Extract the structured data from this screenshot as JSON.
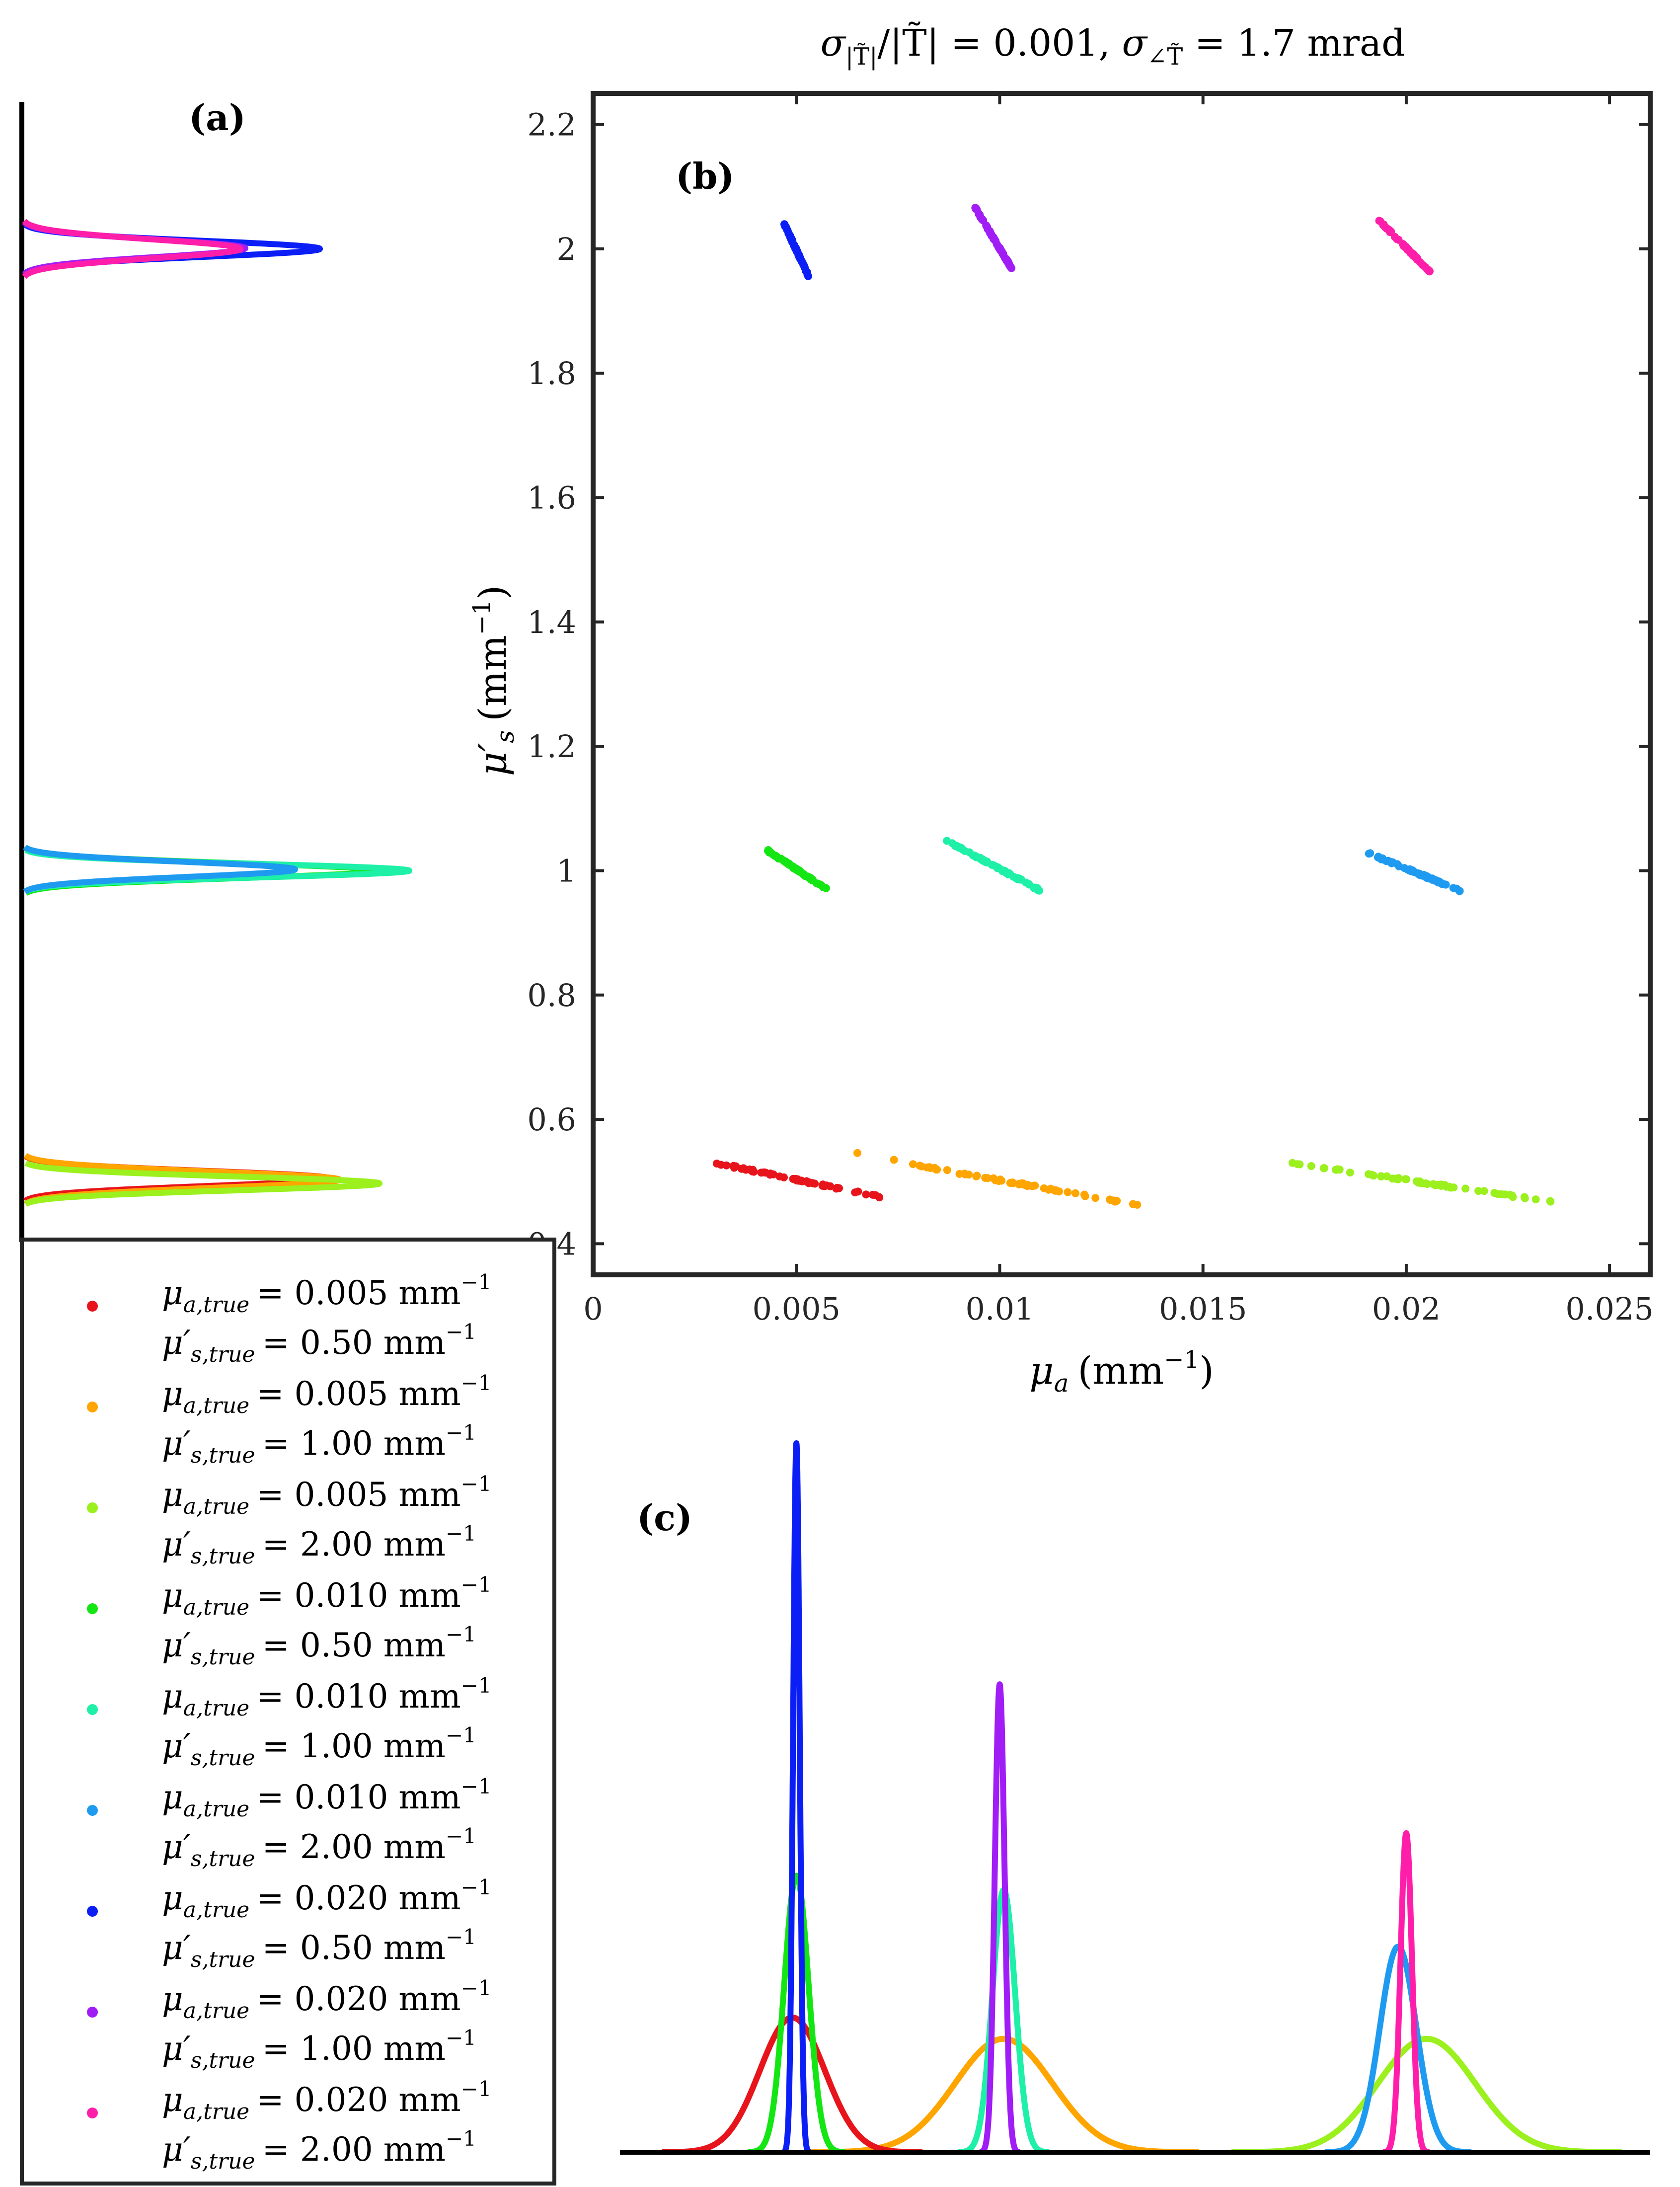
{
  "figure": {
    "title_main": "σ|T̃|/|T̃| = 0.001,  σ∠T̃ = 1.7 mrad",
    "title_parts": {
      "amp_sigma_sub": "|T̃|",
      "amp_ratio": "/|T̃| = 0.001,",
      "phase_sigma_sub": "∠T̃",
      "phase_value": "= 1.7 mrad"
    }
  },
  "colors": {
    "c1": "#e8141b",
    "c2": "#ffa500",
    "c3": "#9bf01e",
    "c4": "#14e614",
    "c5": "#1ef0a8",
    "c6": "#1e9bf0",
    "c7": "#0a1ef5",
    "c8": "#a01ef5",
    "c9": "#ff1eaa",
    "axis": "#262626"
  },
  "chart_data": [
    {
      "panel": "(b)",
      "type": "scatter",
      "title": "σ|T̃|/|T̃| = 0.001, σ∠T̃ = 1.7 mrad",
      "xlabel": "μa (mm⁻¹)",
      "xlabel_symbol": "μ",
      "xlabel_sub": "a",
      "xlabel_unit": "(mm",
      "xlabel_exp": "−1",
      "xlabel_close": ")",
      "ylabel": "μ′s (mm⁻¹)",
      "ylabel_symbol": "μ′",
      "ylabel_sub": "s",
      "ylabel_unit": "(mm",
      "ylabel_exp": "−1",
      "ylabel_close": ")",
      "xlim": [
        0,
        0.026
      ],
      "ylim": [
        0.35,
        2.25
      ],
      "xticks": [
        0,
        0.005,
        0.01,
        0.015,
        0.02,
        0.025
      ],
      "xtick_labels": [
        "0",
        "0.005",
        "0.01",
        "0.015",
        "0.02",
        "0.025"
      ],
      "yticks": [
        0.4,
        0.6,
        0.8,
        1.0,
        1.2,
        1.4,
        1.6,
        1.8,
        2.0,
        2.2
      ],
      "ytick_labels": [
        "0.4",
        "0.6",
        "0.8",
        "1",
        "1.2",
        "1.4",
        "1.6",
        "1.8",
        "2",
        "2.2"
      ],
      "series": [
        {
          "name": "μa,true = 0.005 mm⁻¹, μ′s,true = 0.50 mm⁻¹",
          "color": "#e8141b",
          "x_range": [
            0.003,
            0.0073
          ],
          "y_range": [
            0.53,
            0.472
          ]
        },
        {
          "name": "μa,true = 0.005 mm⁻¹, μ′s,true = 1.00 mm⁻¹",
          "color": "#ffa500",
          "x_range": [
            0.0078,
            0.0136
          ],
          "y_range": [
            0.528,
            0.46
          ]
        },
        {
          "name": "μa,true = 0.005 mm⁻¹, μ′s,true = 2.00 mm⁻¹",
          "color": "#9bf01e",
          "x_range": [
            0.0172,
            0.0239
          ],
          "y_range": [
            0.53,
            0.464
          ]
        },
        {
          "name": "μa,true = 0.010 mm⁻¹, μ′s,true = 0.50 mm⁻¹",
          "color": "#14e614",
          "x_range": [
            0.0043,
            0.0058
          ],
          "y_range": [
            1.032,
            0.968
          ]
        },
        {
          "name": "μa,true = 0.010 mm⁻¹, μ′s,true = 1.00 mm⁻¹",
          "color": "#1ef0a8",
          "x_range": [
            0.0087,
            0.011
          ],
          "y_range": [
            1.048,
            0.968
          ]
        },
        {
          "name": "μa,true = 0.010 mm⁻¹, μ′s,true = 2.00 mm⁻¹",
          "color": "#1e9bf0",
          "x_range": [
            0.019,
            0.0214
          ],
          "y_range": [
            1.03,
            0.966
          ]
        },
        {
          "name": "μa,true = 0.020 mm⁻¹, μ′s,true = 0.50 mm⁻¹",
          "color": "#0a1ef5",
          "x_range": [
            0.0047,
            0.0053
          ],
          "y_range": [
            2.04,
            1.956
          ]
        },
        {
          "name": "μa,true = 0.020 mm⁻¹, μ′s,true = 1.00 mm⁻¹",
          "color": "#a01ef5",
          "x_range": [
            0.0094,
            0.0103
          ],
          "y_range": [
            2.066,
            1.968
          ]
        },
        {
          "name": "μa,true = 0.020 mm⁻¹, μ′s,true = 2.00 mm⁻¹",
          "color": "#ff1eaa",
          "x_range": [
            0.0193,
            0.0206
          ],
          "y_range": [
            2.048,
            1.962
          ]
        }
      ],
      "outliers": [
        {
          "color": "#ffa500",
          "x": 0.0065,
          "y": 0.546
        },
        {
          "color": "#ffa500",
          "x": 0.0074,
          "y": 0.535
        },
        {
          "color": "#1ef0a8",
          "x": 0.0087,
          "y": 1.048
        },
        {
          "color": "#a01ef5",
          "x": 0.0094,
          "y": 2.066
        }
      ]
    },
    {
      "panel": "(a)",
      "type": "line",
      "description": "marginal density of μ′s (rotated, peaks to the right)",
      "peaks": [
        {
          "color": "#e8141b",
          "center": 0.505,
          "height": 0.62,
          "width": 0.012
        },
        {
          "color": "#ffa500",
          "center": 0.503,
          "height": 0.64,
          "width": 0.013
        },
        {
          "color": "#9bf01e",
          "center": 0.497,
          "height": 0.72,
          "width": 0.011
        },
        {
          "color": "#14e614",
          "center": 1.0,
          "height": 0.72,
          "width": 0.012
        },
        {
          "color": "#1ef0a8",
          "center": 1.0,
          "height": 0.78,
          "width": 0.011
        },
        {
          "color": "#1e9bf0",
          "center": 1.002,
          "height": 0.55,
          "width": 0.012
        },
        {
          "color": "#0a1ef5",
          "center": 2.0,
          "height": 0.6,
          "width": 0.013
        },
        {
          "color": "#a01ef5",
          "center": 2.001,
          "height": 0.45,
          "width": 0.014
        },
        {
          "color": "#ff1eaa",
          "center": 2.0,
          "height": 0.44,
          "width": 0.015
        }
      ]
    },
    {
      "panel": "(c)",
      "type": "line",
      "description": "marginal density of μa",
      "xlim": [
        0,
        0.026
      ],
      "peaks": [
        {
          "color": "#e8141b",
          "center": 0.0049,
          "height": 0.19,
          "width": 0.0008
        },
        {
          "color": "#ffa500",
          "center": 0.0101,
          "height": 0.16,
          "width": 0.0012
        },
        {
          "color": "#9bf01e",
          "center": 0.0205,
          "height": 0.16,
          "width": 0.0012
        },
        {
          "color": "#14e614",
          "center": 0.005,
          "height": 0.39,
          "width": 0.0003
        },
        {
          "color": "#1ef0a8",
          "center": 0.0101,
          "height": 0.37,
          "width": 0.00028
        },
        {
          "color": "#1e9bf0",
          "center": 0.0198,
          "height": 0.29,
          "width": 0.00045
        },
        {
          "color": "#0a1ef5",
          "center": 0.005,
          "height": 1.0,
          "width": 8e-05
        },
        {
          "color": "#a01ef5",
          "center": 0.01,
          "height": 0.66,
          "width": 0.00012
        },
        {
          "color": "#ff1eaa",
          "center": 0.02,
          "height": 0.45,
          "width": 0.00014
        }
      ]
    }
  ],
  "panels": {
    "a": "(a)",
    "b": "(b)",
    "c": "(c)"
  },
  "legend": {
    "entries": [
      {
        "color": "#e8141b",
        "mua_sym": "μ",
        "mua_sub": "a,true",
        "mua_val": "= 0.005 mm",
        "mus_sym": "μ′",
        "mus_sub": "s,true",
        "mus_val": "= 0.50 mm",
        "exp": "−1"
      },
      {
        "color": "#ffa500",
        "mua_sym": "μ",
        "mua_sub": "a,true",
        "mua_val": "= 0.005 mm",
        "mus_sym": "μ′",
        "mus_sub": "s,true",
        "mus_val": "= 1.00 mm",
        "exp": "−1"
      },
      {
        "color": "#9bf01e",
        "mua_sym": "μ",
        "mua_sub": "a,true",
        "mua_val": "= 0.005 mm",
        "mus_sym": "μ′",
        "mus_sub": "s,true",
        "mus_val": "= 2.00 mm",
        "exp": "−1"
      },
      {
        "color": "#14e614",
        "mua_sym": "μ",
        "mua_sub": "a,true",
        "mua_val": "= 0.010 mm",
        "mus_sym": "μ′",
        "mus_sub": "s,true",
        "mus_val": "= 0.50 mm",
        "exp": "−1"
      },
      {
        "color": "#1ef0a8",
        "mua_sym": "μ",
        "mua_sub": "a,true",
        "mua_val": "= 0.010 mm",
        "mus_sym": "μ′",
        "mus_sub": "s,true",
        "mus_val": "= 1.00 mm",
        "exp": "−1"
      },
      {
        "color": "#1e9bf0",
        "mua_sym": "μ",
        "mua_sub": "a,true",
        "mua_val": "= 0.010 mm",
        "mus_sym": "μ′",
        "mus_sub": "s,true",
        "mus_val": "= 2.00 mm",
        "exp": "−1"
      },
      {
        "color": "#0a1ef5",
        "mua_sym": "μ",
        "mua_sub": "a,true",
        "mua_val": "= 0.020 mm",
        "mus_sym": "μ′",
        "mus_sub": "s,true",
        "mus_val": "= 0.50 mm",
        "exp": "−1"
      },
      {
        "color": "#a01ef5",
        "mua_sym": "μ",
        "mua_sub": "a,true",
        "mua_val": "= 0.020 mm",
        "mus_sym": "μ′",
        "mus_sub": "s,true",
        "mus_val": "= 1.00 mm",
        "exp": "−1"
      },
      {
        "color": "#ff1eaa",
        "mua_sym": "μ",
        "mua_sub": "a,true",
        "mua_val": "= 0.020 mm",
        "mus_sym": "μ′",
        "mus_sub": "s,true",
        "mus_val": "= 2.00 mm",
        "exp": "−1"
      }
    ]
  }
}
